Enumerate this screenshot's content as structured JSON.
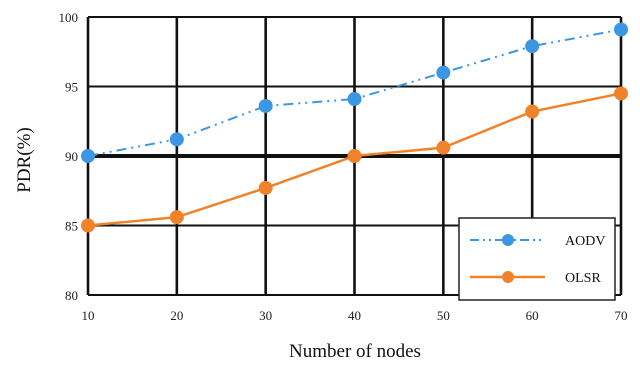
{
  "chart_data": {
    "type": "line",
    "title": "",
    "xlabel": "Number of nodes",
    "ylabel": "PDR(%)",
    "x": [
      10,
      20,
      30,
      40,
      50,
      60,
      70
    ],
    "xlim": [
      10,
      70
    ],
    "ylim": [
      80,
      100
    ],
    "xticks": [
      "10",
      "20",
      "30",
      "40",
      "50",
      "60",
      "70"
    ],
    "yticks": [
      "80",
      "85",
      "90",
      "95",
      "100"
    ],
    "grid": true,
    "legend_position": "bottom-right",
    "series": [
      {
        "name": "AODV",
        "color": "#3b97e3",
        "line_style": "dash-dot-dot",
        "marker": "circle",
        "values": [
          90.0,
          91.2,
          93.6,
          94.1,
          96.0,
          97.9,
          99.1
        ]
      },
      {
        "name": "OLSR",
        "color": "#f0832a",
        "line_style": "solid",
        "marker": "circle",
        "values": [
          85.0,
          85.6,
          87.7,
          90.0,
          90.6,
          93.2,
          94.5
        ]
      }
    ]
  }
}
